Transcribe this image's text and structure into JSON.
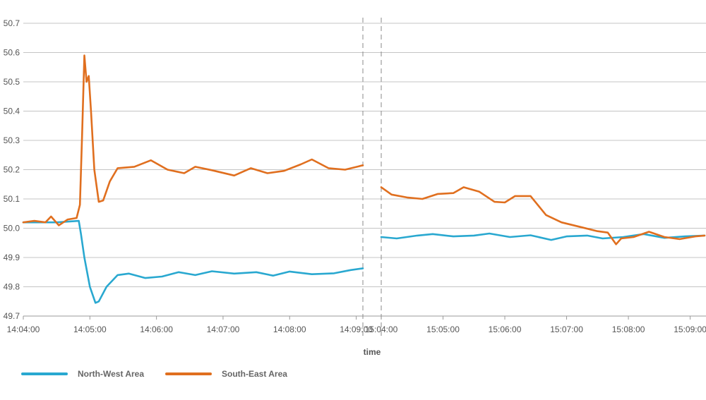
{
  "chart_data": {
    "type": "line",
    "xlabel": "time",
    "ylabel": "",
    "ylim": [
      49.7,
      50.7
    ],
    "yticks": [
      "49.7",
      "49.8",
      "49.9",
      "50.0",
      "50.1",
      "50.2",
      "50.3",
      "50.4",
      "50.5",
      "50.6",
      "50.7"
    ],
    "grid": true,
    "legend_position": "bottom-left",
    "segments": [
      {
        "xticks": [
          "14:04:00",
          "14:05:00",
          "14:06:00",
          "14:07:00",
          "14:08:00",
          "14:09:00"
        ],
        "xrange": [
          "14:04:00",
          "14:09:06"
        ]
      },
      {
        "xticks": [
          "15:04:00",
          "15:05:00",
          "15:06:00",
          "15:07:00",
          "15:08:00",
          "15:09:00"
        ],
        "xrange": [
          "15:04:00",
          "15:09:14"
        ]
      }
    ],
    "series": [
      {
        "name": "North-West Area",
        "color": "#29a8d0",
        "segments": [
          [
            [
              "14:04:00",
              50.02
            ],
            [
              "14:04:30",
              50.02
            ],
            [
              "14:04:50",
              50.025
            ],
            [
              "14:04:52",
              49.98
            ],
            [
              "14:04:55",
              49.9
            ],
            [
              "14:05:00",
              49.8
            ],
            [
              "14:05:05",
              49.745
            ],
            [
              "14:05:08",
              49.75
            ],
            [
              "14:05:15",
              49.8
            ],
            [
              "14:05:25",
              49.84
            ],
            [
              "14:05:35",
              49.845
            ],
            [
              "14:05:50",
              49.83
            ],
            [
              "14:06:05",
              49.835
            ],
            [
              "14:06:20",
              49.85
            ],
            [
              "14:06:35",
              49.84
            ],
            [
              "14:06:50",
              49.853
            ],
            [
              "14:07:10",
              49.845
            ],
            [
              "14:07:30",
              49.85
            ],
            [
              "14:07:45",
              49.838
            ],
            [
              "14:08:00",
              49.852
            ],
            [
              "14:08:20",
              49.843
            ],
            [
              "14:08:40",
              49.846
            ],
            [
              "14:08:55",
              49.857
            ],
            [
              "14:09:06",
              49.863
            ]
          ],
          [
            [
              "15:04:00",
              49.97
            ],
            [
              "15:04:15",
              49.965
            ],
            [
              "15:04:35",
              49.975
            ],
            [
              "15:04:50",
              49.98
            ],
            [
              "15:05:10",
              49.972
            ],
            [
              "15:05:30",
              49.975
            ],
            [
              "15:05:45",
              49.982
            ],
            [
              "15:06:05",
              49.97
            ],
            [
              "15:06:25",
              49.976
            ],
            [
              "15:06:45",
              49.96
            ],
            [
              "15:07:00",
              49.972
            ],
            [
              "15:07:20",
              49.975
            ],
            [
              "15:07:35",
              49.965
            ],
            [
              "15:07:55",
              49.97
            ],
            [
              "15:08:15",
              49.98
            ],
            [
              "15:08:35",
              49.967
            ],
            [
              "15:08:55",
              49.972
            ],
            [
              "15:09:14",
              49.975
            ]
          ]
        ]
      },
      {
        "name": "South-East Area",
        "color": "#e06f1f",
        "segments": [
          [
            [
              "14:04:00",
              50.02
            ],
            [
              "14:04:10",
              50.025
            ],
            [
              "14:04:20",
              50.02
            ],
            [
              "14:04:25",
              50.04
            ],
            [
              "14:04:32",
              50.01
            ],
            [
              "14:04:40",
              50.03
            ],
            [
              "14:04:48",
              50.035
            ],
            [
              "14:04:51",
              50.08
            ],
            [
              "14:04:53",
              50.32
            ],
            [
              "14:04:55",
              50.59
            ],
            [
              "14:04:57",
              50.5
            ],
            [
              "14:04:59",
              50.52
            ],
            [
              "14:05:01",
              50.4
            ],
            [
              "14:05:04",
              50.2
            ],
            [
              "14:05:08",
              50.09
            ],
            [
              "14:05:12",
              50.095
            ],
            [
              "14:05:18",
              50.16
            ],
            [
              "14:05:25",
              50.205
            ],
            [
              "14:05:40",
              50.21
            ],
            [
              "14:05:55",
              50.232
            ],
            [
              "14:06:10",
              50.2
            ],
            [
              "14:06:25",
              50.188
            ],
            [
              "14:06:35",
              50.21
            ],
            [
              "14:06:50",
              50.198
            ],
            [
              "14:07:10",
              50.18
            ],
            [
              "14:07:25",
              50.205
            ],
            [
              "14:07:40",
              50.188
            ],
            [
              "14:07:55",
              50.196
            ],
            [
              "14:08:10",
              50.218
            ],
            [
              "14:08:20",
              50.235
            ],
            [
              "14:08:35",
              50.205
            ],
            [
              "14:08:50",
              50.2
            ],
            [
              "14:09:06",
              50.215
            ]
          ],
          [
            [
              "15:04:00",
              50.14
            ],
            [
              "15:04:10",
              50.115
            ],
            [
              "15:04:25",
              50.105
            ],
            [
              "15:04:40",
              50.1
            ],
            [
              "15:04:55",
              50.117
            ],
            [
              "15:05:10",
              50.12
            ],
            [
              "15:05:20",
              50.14
            ],
            [
              "15:05:35",
              50.125
            ],
            [
              "15:05:50",
              50.09
            ],
            [
              "15:06:00",
              50.088
            ],
            [
              "15:06:10",
              50.11
            ],
            [
              "15:06:25",
              50.11
            ],
            [
              "15:06:40",
              50.045
            ],
            [
              "15:06:55",
              50.02
            ],
            [
              "15:07:15",
              50.003
            ],
            [
              "15:07:30",
              49.99
            ],
            [
              "15:07:40",
              49.985
            ],
            [
              "15:07:48",
              49.945
            ],
            [
              "15:07:53",
              49.965
            ],
            [
              "15:08:05",
              49.97
            ],
            [
              "15:08:20",
              49.988
            ],
            [
              "15:08:35",
              49.97
            ],
            [
              "15:08:50",
              49.963
            ],
            [
              "15:09:05",
              49.972
            ],
            [
              "15:09:14",
              49.975
            ]
          ]
        ]
      }
    ]
  }
}
